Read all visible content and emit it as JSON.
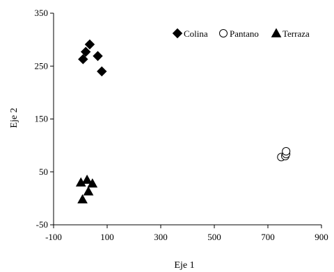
{
  "chart_data": {
    "type": "scatter",
    "title": "",
    "xlabel": "Eje 1",
    "ylabel": "Eje 2",
    "xlim": [
      -100,
      900
    ],
    "ylim": [
      -50,
      350
    ],
    "xticks": [
      -100,
      100,
      300,
      500,
      700,
      900
    ],
    "yticks": [
      -50,
      50,
      150,
      250,
      350
    ],
    "grid": false,
    "legend_position": "top-right",
    "series": [
      {
        "name": "Colina",
        "marker": "diamond",
        "filled": true,
        "points": [
          {
            "x": 10,
            "y": 263
          },
          {
            "x": 20,
            "y": 277
          },
          {
            "x": 35,
            "y": 291
          },
          {
            "x": 65,
            "y": 269
          },
          {
            "x": 80,
            "y": 240
          }
        ]
      },
      {
        "name": "Pantano",
        "marker": "circle",
        "filled": false,
        "points": [
          {
            "x": 750,
            "y": 78
          },
          {
            "x": 765,
            "y": 80
          },
          {
            "x": 768,
            "y": 84
          },
          {
            "x": 768,
            "y": 89
          }
        ]
      },
      {
        "name": "Terraza",
        "marker": "triangle",
        "filled": true,
        "points": [
          {
            "x": 2,
            "y": 30
          },
          {
            "x": 25,
            "y": 35
          },
          {
            "x": 45,
            "y": 28
          },
          {
            "x": 30,
            "y": 13
          },
          {
            "x": 8,
            "y": -2
          }
        ]
      }
    ]
  }
}
